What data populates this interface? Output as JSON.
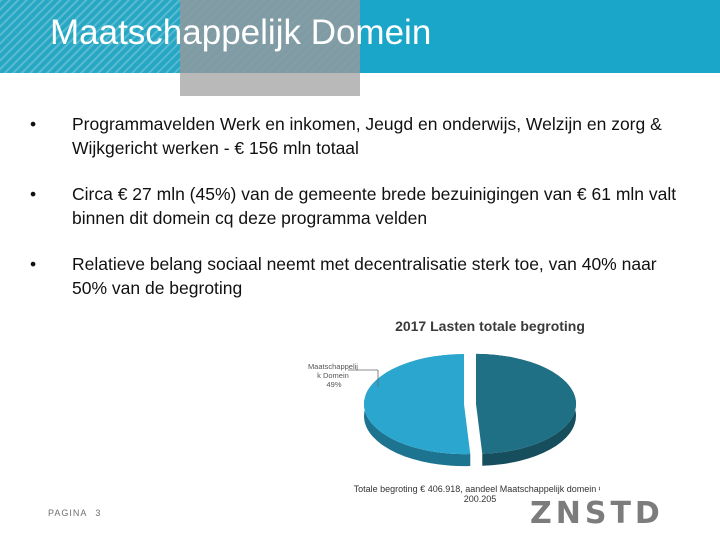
{
  "header": {
    "title": "Maatschappelijk Domein"
  },
  "bullets": [
    {
      "text": "Programmavelden Werk en inkomen, Jeugd en onderwijs, Welzijn en zorg & Wijkgericht werken - € 156 mln totaal"
    },
    {
      "text": "Circa € 27 mln (45%) van de gemeente brede bezuinigingen van € 61 mln valt binnen dit domein cq deze programma velden"
    },
    {
      "text": "Relatieve belang sociaal neemt met decentralisatie sterk toe, van 40% naar 50% van de begroting"
    }
  ],
  "bullet_symbol": "•",
  "chart_data": {
    "type": "pie",
    "title": "2017 Lasten totale begroting",
    "slices": [
      {
        "label_lines": [
          "Maatschappelij",
          "k Domein",
          "49%"
        ],
        "value": 49,
        "color": "#1f6f85"
      },
      {
        "label_lines": [],
        "value": 51,
        "color": "#2aa6cf"
      }
    ],
    "footnote_lines": [
      "Totale begroting € 406.918, aandeel Maatschappelijk domein €",
      "200.205"
    ]
  },
  "footer": {
    "page_label": "PAGINA",
    "page_number": "3"
  },
  "logo": {
    "text": "ZNSTD"
  },
  "colors": {
    "header": "#1aa6c8",
    "accent_grey": "#b9b9b9",
    "pie_dark": "#1f6f85",
    "pie_light": "#2aa6cf"
  }
}
